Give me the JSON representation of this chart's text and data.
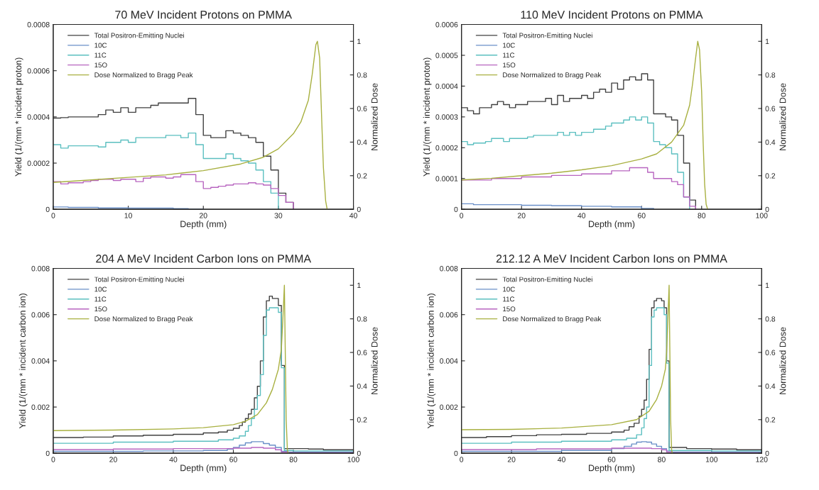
{
  "chart_data": [
    {
      "type": "step",
      "title": "70 MeV Incident Protons on PMMA",
      "xlabel": "Depth (mm)",
      "ylabel": "Yield (1/(mm * incident proton)",
      "y2label": "Normalized Dose",
      "legend": "top left",
      "xlim": [
        0,
        40
      ],
      "xticks": [
        0,
        10,
        20,
        30,
        40
      ],
      "ylim": [
        0,
        0.0008
      ],
      "yticks": [
        0,
        0.0002,
        0.0004,
        0.0006,
        0.0008
      ],
      "y2lim": [
        0,
        1.1
      ],
      "y2ticks": [
        0,
        0.2,
        0.4,
        0.6,
        0.8,
        1
      ],
      "series": [
        {
          "name": "Total Positron-Emitting Nuclei",
          "color": "#404040",
          "x": [
            0,
            1,
            2,
            3,
            4,
            5,
            6,
            7,
            8,
            9,
            10,
            11,
            12,
            13,
            14,
            15,
            16,
            17,
            18,
            19,
            20,
            21,
            22,
            23,
            24,
            25,
            26,
            27,
            28,
            29,
            30,
            31,
            32
          ],
          "values": [
            0.000395,
            0.000397,
            0.0004,
            0.0004,
            0.0004,
            0.0004,
            0.00041,
            0.00043,
            0.00042,
            0.00044,
            0.00042,
            0.00044,
            0.00044,
            0.00045,
            0.00046,
            0.00046,
            0.00046,
            0.00046,
            0.00048,
            0.00041,
            0.00032,
            0.00031,
            0.00031,
            0.00034,
            0.00033,
            0.00032,
            0.00031,
            0.00029,
            0.00023,
            0.00017,
            7e-05,
            3e-05,
            0
          ]
        },
        {
          "name": "10C",
          "color": "#6a8fc8",
          "x": [
            0,
            2,
            6,
            10,
            16,
            18,
            20
          ],
          "values": [
            1e-05,
            8e-06,
            6e-06,
            5e-06,
            3e-06,
            1e-06,
            0
          ]
        },
        {
          "name": "11C",
          "color": "#5bbfc0",
          "x": [
            0,
            1,
            2,
            3,
            4,
            5,
            6,
            7,
            8,
            9,
            10,
            11,
            12,
            13,
            14,
            15,
            16,
            17,
            18,
            19,
            20,
            21,
            22,
            23,
            24,
            25,
            26,
            27,
            28,
            29,
            30
          ],
          "values": [
            0.00028,
            0.000265,
            0.000275,
            0.000275,
            0.000275,
            0.000275,
            0.00027,
            0.00029,
            0.00029,
            0.0003,
            0.00029,
            0.00031,
            0.00031,
            0.00031,
            0.00031,
            0.00032,
            0.00032,
            0.00031,
            0.00033,
            0.00028,
            0.00022,
            0.00022,
            0.00022,
            0.00024,
            0.00022,
            0.00021,
            0.0002,
            0.00017,
            0.00012,
            7e-05,
            0
          ]
        },
        {
          "name": "15O",
          "color": "#b865c0",
          "x": [
            0,
            1,
            2,
            3,
            4,
            5,
            6,
            7,
            8,
            9,
            10,
            11,
            12,
            13,
            14,
            15,
            16,
            17,
            18,
            19,
            20,
            21,
            22,
            23,
            24,
            25,
            26,
            27,
            28,
            29,
            30,
            31,
            32
          ],
          "values": [
            0.00012,
            0.00011,
            0.000115,
            0.000115,
            0.00012,
            0.000125,
            0.00013,
            0.00013,
            0.000125,
            0.00013,
            0.00013,
            0.00012,
            0.000135,
            0.00014,
            0.00014,
            0.000135,
            0.00014,
            0.00015,
            0.00015,
            0.00012,
            9e-05,
            9.5e-05,
            0.0001,
            0.000105,
            0.00011,
            0.00011,
            0.000115,
            0.00011,
            0.000105,
            9e-05,
            6e-05,
            3e-05,
            0
          ]
        },
        {
          "name": "Dose Normalized to Bragg Peak",
          "type": "line",
          "axis": "y2",
          "color": "#a8b040",
          "x": [
            0,
            5,
            10,
            15,
            20,
            25,
            28,
            30,
            32,
            33,
            34,
            34.5,
            35,
            35.2,
            35.5,
            35.8,
            36,
            36.3,
            36.5
          ],
          "values": [
            0.16,
            0.175,
            0.19,
            0.205,
            0.23,
            0.27,
            0.31,
            0.36,
            0.45,
            0.52,
            0.65,
            0.8,
            0.98,
            1.0,
            0.9,
            0.5,
            0.25,
            0.05,
            0
          ]
        }
      ]
    },
    {
      "type": "step",
      "title": "110 MeV Incident Protons on PMMA",
      "xlabel": "Depth (mm)",
      "ylabel": "Yield (1/(mm * incident proton)",
      "y2label": "Normalized Dose",
      "legend": "top left",
      "xlim": [
        0,
        100
      ],
      "xticks": [
        0,
        20,
        40,
        60,
        80,
        100
      ],
      "ylim": [
        0,
        0.0006
      ],
      "yticks": [
        0,
        0.0001,
        0.0002,
        0.0003,
        0.0004,
        0.0005,
        0.0006
      ],
      "y2lim": [
        0,
        1.1
      ],
      "y2ticks": [
        0,
        0.2,
        0.4,
        0.6,
        0.8,
        1
      ],
      "series": [
        {
          "name": "Total Positron-Emitting Nuclei",
          "color": "#404040",
          "x": [
            0,
            2,
            4,
            6,
            8,
            10,
            12,
            14,
            16,
            18,
            20,
            22,
            24,
            26,
            28,
            30,
            32,
            34,
            36,
            38,
            40,
            42,
            44,
            46,
            48,
            50,
            52,
            54,
            56,
            58,
            60,
            62,
            64,
            66,
            68,
            70,
            72,
            74,
            76,
            78
          ],
          "values": [
            0.00033,
            0.00032,
            0.00031,
            0.00033,
            0.00033,
            0.00034,
            0.00035,
            0.00034,
            0.00033,
            0.00034,
            0.00034,
            0.00035,
            0.00035,
            0.00035,
            0.00036,
            0.00034,
            0.00037,
            0.00035,
            0.00036,
            0.00036,
            0.00037,
            0.00036,
            0.00038,
            0.00039,
            0.00038,
            0.00041,
            0.00039,
            0.00042,
            0.00043,
            0.00042,
            0.00044,
            0.00042,
            0.00031,
            0.00031,
            0.0003,
            0.00029,
            0.00024,
            0.00015,
            3e-05,
            0
          ]
        },
        {
          "name": "10C",
          "color": "#6a8fc8",
          "x": [
            0,
            4,
            8,
            20,
            30,
            40,
            50,
            60,
            64
          ],
          "values": [
            1.8e-05,
            1.5e-05,
            1.5e-05,
            1.3e-05,
            1.2e-05,
            1e-05,
            8e-06,
            3e-06,
            0
          ]
        },
        {
          "name": "11C",
          "color": "#5bbfc0",
          "x": [
            0,
            2,
            4,
            6,
            8,
            10,
            12,
            14,
            16,
            18,
            20,
            22,
            24,
            26,
            28,
            30,
            32,
            34,
            36,
            38,
            40,
            42,
            44,
            46,
            48,
            50,
            52,
            54,
            56,
            58,
            60,
            62,
            64,
            66,
            68,
            70,
            72,
            74,
            76
          ],
          "values": [
            0.00022,
            0.00021,
            0.000215,
            0.000215,
            0.00022,
            0.00023,
            0.00023,
            0.00022,
            0.00023,
            0.00023,
            0.00023,
            0.000235,
            0.00024,
            0.00024,
            0.00024,
            0.00024,
            0.00025,
            0.00024,
            0.00025,
            0.00024,
            0.00025,
            0.00025,
            0.00026,
            0.00026,
            0.00027,
            0.00028,
            0.00028,
            0.00029,
            0.0003,
            0.00029,
            0.0003,
            0.00028,
            0.00022,
            0.00021,
            0.0002,
            0.00018,
            0.00012,
            4e-05,
            0
          ]
        },
        {
          "name": "15O",
          "color": "#b865c0",
          "x": [
            0,
            10,
            20,
            30,
            40,
            50,
            56,
            60,
            62,
            64,
            68,
            70,
            72,
            74,
            76,
            78
          ],
          "values": [
            9.5e-05,
            0.0001,
            0.000105,
            0.00011,
            0.000115,
            0.000125,
            0.000135,
            0.000135,
            0.00012,
            0.0001,
            0.0001,
            9e-05,
            8e-05,
            4e-05,
            1e-05,
            0
          ]
        },
        {
          "name": "Dose Normalized to Bragg Peak",
          "type": "line",
          "axis": "y2",
          "color": "#a8b040",
          "x": [
            0,
            10,
            20,
            30,
            40,
            50,
            60,
            65,
            70,
            74,
            76,
            77,
            78,
            78.7,
            79.3,
            80,
            80.5,
            81,
            81.5,
            82
          ],
          "values": [
            0.175,
            0.185,
            0.2,
            0.215,
            0.235,
            0.26,
            0.3,
            0.33,
            0.4,
            0.5,
            0.62,
            0.75,
            0.9,
            1.0,
            0.95,
            0.7,
            0.4,
            0.15,
            0.03,
            0
          ]
        }
      ]
    },
    {
      "type": "step",
      "title": "204 A MeV Incident Carbon Ions on PMMA",
      "xlabel": "Depth (mm)",
      "ylabel": "Yield (1/(mm * incident carbon ion)",
      "y2label": "Normalized Dose",
      "legend": "top left",
      "xlim": [
        0,
        100
      ],
      "xticks": [
        0,
        20,
        40,
        60,
        80,
        100
      ],
      "ylim": [
        0,
        0.008
      ],
      "yticks": [
        0,
        0.002,
        0.004,
        0.006,
        0.008
      ],
      "y2lim": [
        0,
        1.1
      ],
      "y2ticks": [
        0,
        0.2,
        0.4,
        0.6,
        0.8,
        1
      ],
      "series": [
        {
          "name": "Total Positron-Emitting Nuclei",
          "color": "#404040",
          "x": [
            0,
            10,
            20,
            30,
            40,
            50,
            55,
            58,
            60,
            62,
            63,
            64,
            65,
            66,
            67,
            68,
            69,
            70,
            71,
            72,
            73,
            74,
            75,
            76,
            77,
            78,
            85,
            90,
            100
          ],
          "values": [
            0.00068,
            0.0007,
            0.00075,
            0.00078,
            0.00082,
            0.00088,
            0.00092,
            0.001,
            0.00108,
            0.0012,
            0.00135,
            0.0015,
            0.0017,
            0.0019,
            0.0024,
            0.0029,
            0.004,
            0.0059,
            0.0066,
            0.0068,
            0.0067,
            0.0067,
            0.0064,
            0.0038,
            0.0002,
            0.0002,
            0.00018,
            0.00015,
            0.00015
          ]
        },
        {
          "name": "10C",
          "color": "#6a8fc8",
          "x": [
            0,
            30,
            50,
            58,
            60,
            62,
            64,
            66,
            68,
            70,
            72,
            74,
            76,
            78,
            100
          ],
          "values": [
            8e-05,
            0.0001,
            0.00012,
            0.00018,
            0.00025,
            0.00035,
            0.00045,
            0.0005,
            0.0005,
            0.00042,
            0.00035,
            0.00025,
            8e-05,
            5e-05,
            5e-05
          ]
        },
        {
          "name": "11C",
          "color": "#5bbfc0",
          "x": [
            0,
            20,
            40,
            55,
            60,
            62,
            64,
            65,
            66,
            67,
            68,
            69,
            70,
            71,
            72,
            73,
            74,
            75,
            76,
            77,
            80,
            100
          ],
          "values": [
            0.00043,
            0.00048,
            0.00052,
            0.00058,
            0.00065,
            0.00075,
            0.00095,
            0.0012,
            0.0015,
            0.0019,
            0.0025,
            0.0034,
            0.0051,
            0.0062,
            0.0063,
            0.0063,
            0.0063,
            0.0061,
            0.0037,
            0.00012,
            0.0001,
            0.0001
          ]
        },
        {
          "name": "15O",
          "color": "#b865c0",
          "x": [
            0,
            20,
            40,
            60,
            66,
            70,
            74,
            76,
            78,
            100
          ],
          "values": [
            0.00016,
            0.00018,
            0.0002,
            0.00022,
            0.00025,
            0.00022,
            0.00015,
            5e-05,
            2e-05,
            2e-05
          ]
        },
        {
          "name": "Dose Normalized to Bragg Peak",
          "type": "line",
          "axis": "y2",
          "color": "#a8b040",
          "x": [
            0,
            20,
            40,
            50,
            60,
            64,
            68,
            71,
            73,
            75,
            76,
            76.5,
            77,
            77.3,
            77.6,
            78,
            78.3
          ],
          "values": [
            0.135,
            0.138,
            0.145,
            0.152,
            0.17,
            0.19,
            0.23,
            0.3,
            0.38,
            0.5,
            0.62,
            0.8,
            1.0,
            0.6,
            0.2,
            0.02,
            0
          ]
        }
      ]
    },
    {
      "type": "step",
      "title": "212.12 A MeV Incident Carbon Ions on PMMA",
      "xlabel": "Depth (mm)",
      "ylabel": "Yield (1/(mm * incident carbon ion)",
      "y2label": "Normalized Dose",
      "legend": "top left",
      "xlim": [
        0,
        120
      ],
      "xticks": [
        0,
        20,
        40,
        60,
        80,
        100,
        120
      ],
      "ylim": [
        0,
        0.008
      ],
      "yticks": [
        0,
        0.002,
        0.004,
        0.006,
        0.008
      ],
      "y2lim": [
        0,
        1.1
      ],
      "y2ticks": [
        0,
        0.2,
        0.4,
        0.6,
        0.8,
        1
      ],
      "series": [
        {
          "name": "Total Positron-Emitting Nuclei",
          "color": "#404040",
          "x": [
            0,
            10,
            20,
            30,
            40,
            50,
            60,
            65,
            67,
            69,
            71,
            72,
            73,
            74,
            75,
            76,
            77,
            78,
            79,
            80,
            81,
            82,
            83,
            90,
            100,
            110,
            120
          ],
          "values": [
            0.00068,
            0.00072,
            0.00076,
            0.0008,
            0.00082,
            0.00086,
            0.00092,
            0.001,
            0.00115,
            0.0013,
            0.0016,
            0.0019,
            0.0023,
            0.0032,
            0.0045,
            0.0063,
            0.0066,
            0.0067,
            0.0067,
            0.0066,
            0.0063,
            0.004,
            0.00025,
            0.0002,
            0.00018,
            0.00015,
            0.00015
          ]
        },
        {
          "name": "10C",
          "color": "#6a8fc8",
          "x": [
            0,
            40,
            60,
            65,
            68,
            70,
            72,
            74,
            76,
            78,
            80,
            82,
            84,
            120
          ],
          "values": [
            8e-05,
            0.00012,
            0.0002,
            0.0003,
            0.0004,
            0.00048,
            0.0005,
            0.00048,
            0.0004,
            0.0003,
            0.0002,
            0.0001,
            5e-05,
            5e-05
          ]
        },
        {
          "name": "11C",
          "color": "#5bbfc0",
          "x": [
            0,
            20,
            40,
            60,
            66,
            70,
            72,
            73,
            74,
            75,
            76,
            77,
            78,
            79,
            80,
            81,
            82,
            83,
            100,
            120
          ],
          "values": [
            0.00043,
            0.00048,
            0.00052,
            0.00058,
            0.00065,
            0.0008,
            0.0011,
            0.0015,
            0.002,
            0.0038,
            0.0059,
            0.0062,
            0.0063,
            0.0063,
            0.0063,
            0.006,
            0.0039,
            0.00012,
            0.0001,
            0.0001
          ]
        },
        {
          "name": "15O",
          "color": "#b865c0",
          "x": [
            0,
            30,
            60,
            70,
            76,
            80,
            82,
            84,
            120
          ],
          "values": [
            0.00016,
            0.00019,
            0.00022,
            0.00022,
            0.0002,
            0.00015,
            5e-05,
            2e-05,
            2e-05
          ]
        },
        {
          "name": "Dose Normalized to Bragg Peak",
          "type": "line",
          "axis": "y2",
          "color": "#a8b040",
          "x": [
            0,
            20,
            40,
            60,
            70,
            75,
            78,
            80,
            81.5,
            82,
            82.5,
            83,
            83.3,
            83.6,
            84,
            84.3
          ],
          "values": [
            0.14,
            0.142,
            0.15,
            0.17,
            0.2,
            0.25,
            0.32,
            0.4,
            0.5,
            0.6,
            0.8,
            1.0,
            0.6,
            0.2,
            0.02,
            0
          ]
        }
      ]
    }
  ]
}
